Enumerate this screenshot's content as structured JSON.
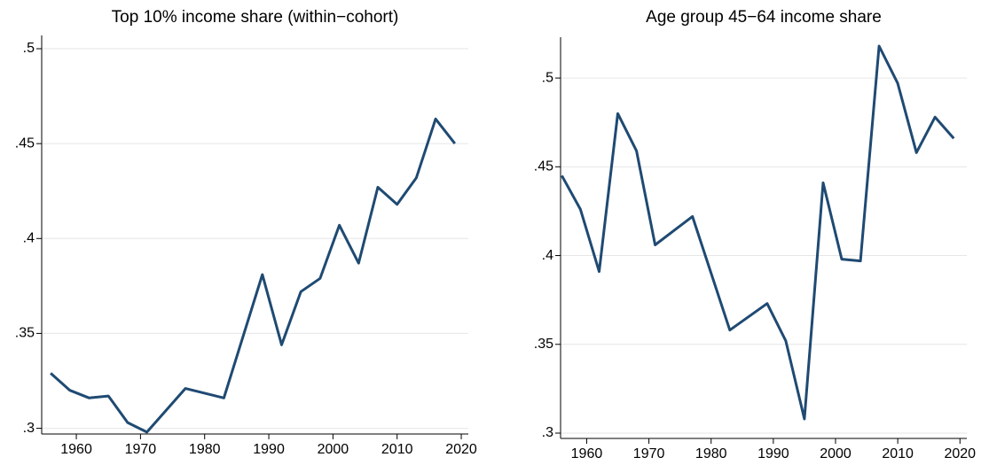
{
  "chart_data": [
    {
      "type": "line",
      "title": "Top 10% income share (within−cohort)",
      "color": "#1f4a72",
      "x": [
        1956,
        1959,
        1962,
        1965,
        1968,
        1971,
        1977,
        1983,
        1989,
        1992,
        1995,
        1998,
        2001,
        2004,
        2007,
        2010,
        2013,
        2016,
        2019
      ],
      "values": [
        0.329,
        0.32,
        0.316,
        0.317,
        0.303,
        0.298,
        0.321,
        0.316,
        0.381,
        0.344,
        0.372,
        0.379,
        0.407,
        0.387,
        0.427,
        0.418,
        0.432,
        0.463,
        0.45
      ],
      "xlim": [
        1954.6,
        2021.1
      ],
      "xticks": [
        1960,
        1970,
        1980,
        1990,
        2000,
        2010,
        2020
      ],
      "ylim": [
        0.297,
        0.507
      ],
      "yticks": [
        {
          "value": 0.3,
          "label": ".3"
        },
        {
          "value": 0.35,
          "label": ".35"
        },
        {
          "value": 0.4,
          "label": ".4"
        },
        {
          "value": 0.45,
          "label": ".45"
        },
        {
          "value": 0.5,
          "label": ".5"
        }
      ],
      "grid": true
    },
    {
      "type": "line",
      "title": "Age group 45−64 income share",
      "color": "#1f4a72",
      "x": [
        1956,
        1959,
        1962,
        1965,
        1968,
        1971,
        1977,
        1983,
        1989,
        1992,
        1995,
        1998,
        2001,
        2004,
        2007,
        2010,
        2013,
        2016,
        2019
      ],
      "values": [
        0.445,
        0.426,
        0.391,
        0.48,
        0.459,
        0.406,
        0.422,
        0.358,
        0.373,
        0.352,
        0.308,
        0.441,
        0.398,
        0.397,
        0.518,
        0.497,
        0.458,
        0.478,
        0.466
      ],
      "xlim": [
        1955.8,
        2021.1
      ],
      "xticks": [
        1960,
        1970,
        1980,
        1990,
        2000,
        2010,
        2020
      ],
      "ylim": [
        0.297,
        0.523
      ],
      "yticks": [
        {
          "value": 0.3,
          "label": ".3"
        },
        {
          "value": 0.35,
          "label": ".35"
        },
        {
          "value": 0.4,
          "label": ".4"
        },
        {
          "value": 0.45,
          "label": ".45"
        },
        {
          "value": 0.5,
          "label": ".5"
        }
      ],
      "grid": true
    }
  ]
}
